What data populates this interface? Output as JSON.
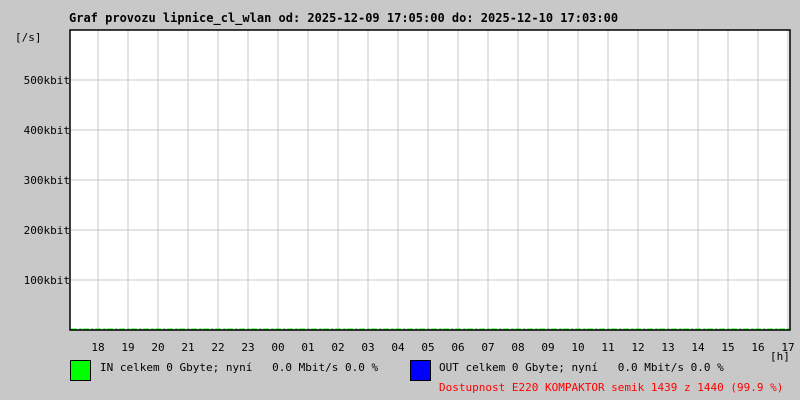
{
  "chart_data": {
    "type": "line",
    "title": "Graf provozu lipnice_cl_wlan od: 2025-12-09 17:05:00 do: 2025-12-10 17:03:00",
    "ylabel": "[/s]",
    "xlabel": "[h]",
    "ylim": [
      0,
      600
    ],
    "yunit": "kbit",
    "yticks": [
      "100kbit",
      "200kbit",
      "300kbit",
      "400kbit",
      "500kbit"
    ],
    "ytick_values": [
      100,
      200,
      300,
      400,
      500
    ],
    "xticks": [
      "18",
      "19",
      "20",
      "21",
      "22",
      "23",
      "00",
      "01",
      "02",
      "03",
      "04",
      "05",
      "06",
      "07",
      "08",
      "09",
      "10",
      "11",
      "12",
      "13",
      "14",
      "15",
      "16",
      "17"
    ],
    "grid": true,
    "series": [
      {
        "name": "IN",
        "color": "#00ff00",
        "values_note_level": 0
      },
      {
        "name": "OUT",
        "color": "#0000ff",
        "values_note_level": 0
      }
    ]
  },
  "legend": {
    "in_text": "IN celkem 0 Gbyte; nyní   0.0 Mbit/s 0.0 %",
    "out_text": "OUT celkem 0 Gbyte; nyní   0.0 Mbit/s 0.0 %",
    "availability": "Dostupnost E220 KOMPAKTOR semik 1439 z 1440 (99.9 %)",
    "in_color": "#00ff00",
    "out_color": "#0000ff",
    "availability_color": "#ff0000"
  }
}
